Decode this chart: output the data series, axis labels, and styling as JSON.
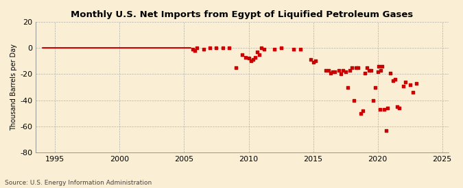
{
  "title": "Monthly U.S. Net Imports from Egypt of Liquified Petroleum Gases",
  "ylabel": "Thousand Barrels per Day",
  "source": "Source: U.S. Energy Information Administration",
  "xlim": [
    1993.5,
    2025.5
  ],
  "ylim": [
    -80,
    20
  ],
  "yticks": [
    -80,
    -60,
    -40,
    -20,
    0,
    20
  ],
  "xticks": [
    1995,
    2000,
    2005,
    2010,
    2015,
    2020,
    2025
  ],
  "background_color": "#faefd4",
  "plot_bg_color": "#faefd4",
  "data_color": "#cc0000",
  "line_color": "#cc0000",
  "zero_line_data": [
    [
      1994.0,
      0
    ],
    [
      1994.5,
      0
    ],
    [
      1995.0,
      0
    ],
    [
      1995.5,
      0
    ],
    [
      1996.0,
      0
    ],
    [
      1996.5,
      0
    ],
    [
      1997.0,
      0
    ],
    [
      1997.5,
      0
    ],
    [
      1998.0,
      0
    ],
    [
      1998.5,
      0
    ],
    [
      1999.0,
      0
    ],
    [
      1999.5,
      0
    ],
    [
      2000.0,
      0
    ],
    [
      2000.5,
      0
    ],
    [
      2001.0,
      0
    ],
    [
      2001.5,
      0
    ],
    [
      2002.0,
      0
    ],
    [
      2002.5,
      0
    ],
    [
      2003.0,
      0
    ],
    [
      2003.5,
      0
    ],
    [
      2004.0,
      0
    ],
    [
      2004.5,
      0
    ],
    [
      2005.0,
      0
    ],
    [
      2005.5,
      0
    ]
  ],
  "scatter_data": [
    [
      2005.67,
      -1
    ],
    [
      2005.83,
      -2
    ],
    [
      2006.0,
      0
    ],
    [
      2006.5,
      -1
    ],
    [
      2007.0,
      0
    ],
    [
      2007.5,
      0
    ],
    [
      2008.0,
      0
    ],
    [
      2008.5,
      0
    ],
    [
      2009.0,
      -15
    ],
    [
      2009.5,
      -5
    ],
    [
      2009.75,
      -7
    ],
    [
      2010.0,
      -8
    ],
    [
      2010.17,
      -10
    ],
    [
      2010.33,
      -9
    ],
    [
      2010.5,
      -7
    ],
    [
      2010.67,
      -3
    ],
    [
      2010.83,
      -5
    ],
    [
      2011.0,
      0
    ],
    [
      2011.17,
      -1
    ],
    [
      2012.0,
      -1
    ],
    [
      2012.5,
      0
    ],
    [
      2013.5,
      -1
    ],
    [
      2014.0,
      -1
    ],
    [
      2014.83,
      -9
    ],
    [
      2015.0,
      -11
    ],
    [
      2015.17,
      -10
    ],
    [
      2016.0,
      -17
    ],
    [
      2016.17,
      -17
    ],
    [
      2016.33,
      -19
    ],
    [
      2016.5,
      -18
    ],
    [
      2016.67,
      -18
    ],
    [
      2017.0,
      -17
    ],
    [
      2017.17,
      -20
    ],
    [
      2017.33,
      -17
    ],
    [
      2017.5,
      -18
    ],
    [
      2017.67,
      -30
    ],
    [
      2017.83,
      -17
    ],
    [
      2018.0,
      -15
    ],
    [
      2018.17,
      -40
    ],
    [
      2018.33,
      -15
    ],
    [
      2018.5,
      -15
    ],
    [
      2018.67,
      -50
    ],
    [
      2018.83,
      -48
    ],
    [
      2019.0,
      -19
    ],
    [
      2019.17,
      -15
    ],
    [
      2019.33,
      -17
    ],
    [
      2019.5,
      -17
    ],
    [
      2019.67,
      -40
    ],
    [
      2019.83,
      -30
    ],
    [
      2020.0,
      -18
    ],
    [
      2020.08,
      -14
    ],
    [
      2020.17,
      -47
    ],
    [
      2020.25,
      -17
    ],
    [
      2020.33,
      -14
    ],
    [
      2020.5,
      -47
    ],
    [
      2020.67,
      -63
    ],
    [
      2020.75,
      -46
    ],
    [
      2021.0,
      -19
    ],
    [
      2021.17,
      -25
    ],
    [
      2021.33,
      -24
    ],
    [
      2021.5,
      -45
    ],
    [
      2021.67,
      -46
    ],
    [
      2022.0,
      -29
    ],
    [
      2022.17,
      -26
    ],
    [
      2022.5,
      -28
    ],
    [
      2022.75,
      -34
    ],
    [
      2023.0,
      -27
    ]
  ]
}
